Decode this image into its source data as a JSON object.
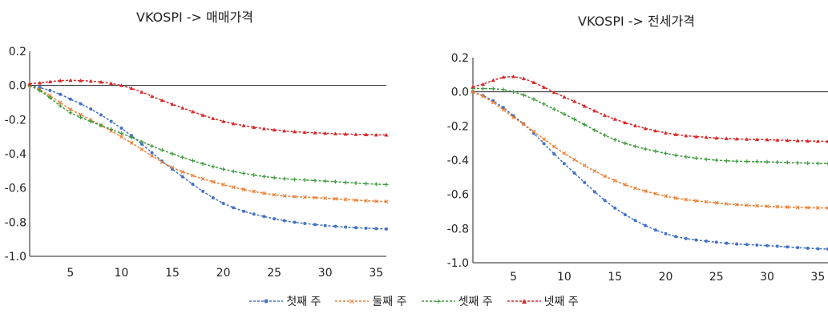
{
  "colors": {
    "first": "#4472C4",
    "second": "#ED7D31",
    "third": "#3E9A3E",
    "fourth": "#D62728"
  },
  "legend": [
    "첫째 주",
    "둘째 주",
    "셋째 주",
    "넷째 주"
  ],
  "chart_data": [
    {
      "type": "line",
      "title": "VKOSPI -> 매매가격",
      "xlim": [
        1,
        36
      ],
      "ylim": [
        -1.0,
        0.2
      ],
      "xticks": [
        5,
        10,
        15,
        20,
        25,
        30,
        35
      ],
      "yticks": [
        "0.2",
        "0.0",
        "-0.2",
        "-0.4",
        "-0.6",
        "-0.8",
        "-1.0"
      ],
      "ytick_values": [
        0.2,
        0.0,
        -0.2,
        -0.4,
        -0.6,
        -0.8,
        -1.0
      ],
      "x": [
        1,
        5,
        10,
        15,
        20,
        25,
        30,
        36
      ],
      "series": [
        {
          "name": "첫째 주",
          "values": [
            0.0,
            -0.08,
            -0.25,
            -0.49,
            -0.69,
            -0.78,
            -0.82,
            -0.84
          ]
        },
        {
          "name": "둘째 주",
          "values": [
            0.0,
            -0.14,
            -0.3,
            -0.48,
            -0.58,
            -0.64,
            -0.66,
            -0.68
          ]
        },
        {
          "name": "셋째 주",
          "values": [
            0.0,
            -0.16,
            -0.28,
            -0.4,
            -0.49,
            -0.54,
            -0.56,
            -0.58
          ]
        },
        {
          "name": "넷째 주",
          "values": [
            0.01,
            0.03,
            0.0,
            -0.11,
            -0.21,
            -0.26,
            -0.28,
            -0.29
          ]
        }
      ]
    },
    {
      "type": "line",
      "title": "VKOSPI  -> 전세가격",
      "xlim": [
        1,
        36
      ],
      "ylim": [
        -1.0,
        0.2
      ],
      "xticks": [
        5,
        10,
        15,
        20,
        25,
        30,
        35
      ],
      "yticks": [
        "0.2",
        "0.0",
        "-0.2",
        "-0.4",
        "-0.6",
        "-0.8",
        "-1.0"
      ],
      "ytick_values": [
        0.2,
        0.0,
        -0.2,
        -0.4,
        -0.6,
        -0.8,
        -1.0
      ],
      "x": [
        1,
        5,
        10,
        15,
        20,
        25,
        30,
        36
      ],
      "series": [
        {
          "name": "첫째 주",
          "values": [
            0.0,
            -0.14,
            -0.42,
            -0.68,
            -0.83,
            -0.88,
            -0.9,
            -0.92
          ]
        },
        {
          "name": "둘째 주",
          "values": [
            0.0,
            -0.15,
            -0.36,
            -0.52,
            -0.61,
            -0.65,
            -0.67,
            -0.68
          ]
        },
        {
          "name": "셋째 주",
          "values": [
            0.02,
            0.0,
            -0.13,
            -0.28,
            -0.36,
            -0.4,
            -0.41,
            -0.42
          ]
        },
        {
          "name": "넷째 주",
          "values": [
            0.03,
            0.09,
            -0.03,
            -0.16,
            -0.24,
            -0.27,
            -0.28,
            -0.29
          ]
        }
      ]
    }
  ]
}
